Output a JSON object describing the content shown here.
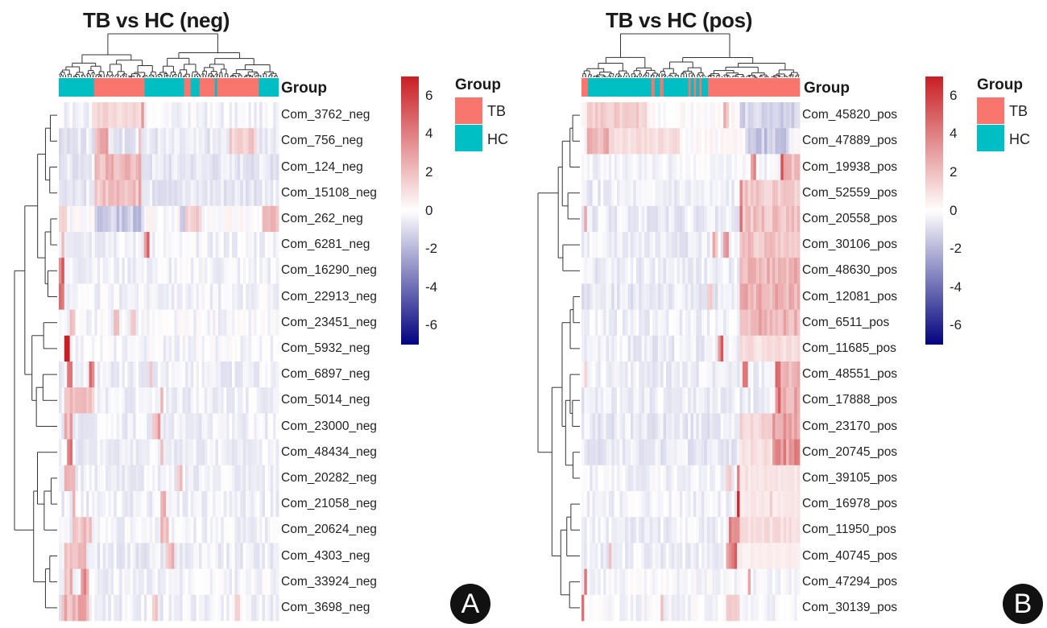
{
  "colors": {
    "TB": "#F8766D",
    "HC": "#00BFC4",
    "high": "#C81F24",
    "mid": "#FFFFFF",
    "low": "#02027F",
    "dendrogram": "#333333"
  },
  "chart_data": [
    {
      "type": "heatmap",
      "title": "TB vs HC (neg)",
      "panel_label": "A",
      "annotation_name": "Group",
      "legend": {
        "title": "Group",
        "entries": [
          {
            "name": "TB",
            "color": "#F8766D"
          },
          {
            "name": "HC",
            "color": "#00BFC4"
          }
        ],
        "placement": "right"
      },
      "colorbar": {
        "range": [
          -7,
          7
        ],
        "ticks": [
          "6",
          "4",
          "2",
          "0",
          "-2",
          "-4",
          "-6"
        ],
        "tick_values": [
          6,
          4,
          2,
          0,
          -2,
          -4,
          -6
        ]
      },
      "n_samples": 80,
      "group_segments": [
        {
          "group": "HC",
          "from": 0.0,
          "to": 0.16
        },
        {
          "group": "TB",
          "from": 0.16,
          "to": 0.39
        },
        {
          "group": "HC",
          "from": 0.39,
          "to": 0.57
        },
        {
          "group": "TB",
          "from": 0.57,
          "to": 0.6
        },
        {
          "group": "HC",
          "from": 0.6,
          "to": 0.64
        },
        {
          "group": "TB",
          "from": 0.64,
          "to": 0.71
        },
        {
          "group": "HC",
          "from": 0.71,
          "to": 0.72
        },
        {
          "group": "TB",
          "from": 0.72,
          "to": 0.91
        },
        {
          "group": "HC",
          "from": 0.91,
          "to": 1.0
        }
      ],
      "rows": [
        "Com_3762_neg",
        "Com_756_neg",
        "Com_124_neg",
        "Com_15108_neg",
        "Com_262_neg",
        "Com_6281_neg",
        "Com_16290_neg",
        "Com_22913_neg",
        "Com_23451_neg",
        "Com_5932_neg",
        "Com_6897_neg",
        "Com_5014_neg",
        "Com_23000_neg",
        "Com_48434_neg",
        "Com_20282_neg",
        "Com_21058_neg",
        "Com_20624_neg",
        "Com_4303_neg",
        "Com_33924_neg",
        "Com_3698_neg"
      ],
      "row_patterns": [
        {
          "base": -0.3,
          "hot": [
            [
              0.15,
              0.38,
              1.5
            ],
            [
              0.37,
              0.39,
              5.5
            ]
          ]
        },
        {
          "base": -0.6,
          "hot": [
            [
              0.16,
              0.22,
              3.0
            ],
            [
              0.36,
              0.38,
              2.5
            ],
            [
              0.78,
              0.9,
              1.8
            ]
          ]
        },
        {
          "base": -0.6,
          "hot": [
            [
              0.16,
              0.38,
              2.5
            ]
          ]
        },
        {
          "base": -0.6,
          "hot": [
            [
              0.16,
              0.38,
              2.2
            ],
            [
              0.36,
              0.37,
              4.5
            ]
          ]
        },
        {
          "base": 0.0,
          "hot": [
            [
              0.0,
              0.04,
              1.5
            ],
            [
              0.55,
              0.65,
              1.8
            ],
            [
              0.92,
              1.0,
              2.2
            ]
          ],
          "cold": [
            [
              0.16,
              0.39,
              -1.8
            ],
            [
              0.55,
              0.57,
              -1.5
            ]
          ]
        },
        {
          "base": -0.3,
          "hot": [
            [
              0.01,
              0.03,
              3.5
            ],
            [
              0.39,
              0.41,
              5.5
            ]
          ]
        },
        {
          "base": -0.3,
          "hot": [
            [
              0.0,
              0.03,
              5.0
            ]
          ]
        },
        {
          "base": -0.3,
          "hot": [
            [
              0.0,
              0.02,
              6.0
            ]
          ]
        },
        {
          "base": -0.2,
          "hot": [
            [
              0.05,
              0.07,
              2.0
            ],
            [
              0.25,
              0.27,
              2.0
            ],
            [
              0.33,
              0.35,
              2.0
            ]
          ]
        },
        {
          "base": -0.2,
          "hot": [
            [
              0.03,
              0.05,
              6.5
            ]
          ]
        },
        {
          "base": -0.4,
          "hot": [
            [
              0.04,
              0.06,
              4.0
            ],
            [
              0.14,
              0.16,
              4.5
            ],
            [
              0.41,
              0.43,
              2.5
            ]
          ]
        },
        {
          "base": -0.4,
          "hot": [
            [
              0.02,
              0.16,
              2.2
            ],
            [
              0.46,
              0.48,
              2.5
            ]
          ]
        },
        {
          "base": -0.4,
          "hot": [
            [
              0.03,
              0.06,
              3.0
            ],
            [
              0.43,
              0.46,
              3.0
            ]
          ]
        },
        {
          "base": -0.4,
          "hot": [
            [
              0.04,
              0.06,
              5.5
            ],
            [
              0.46,
              0.48,
              1.8
            ]
          ]
        },
        {
          "base": -0.4,
          "hot": [
            [
              0.03,
              0.08,
              3.2
            ],
            [
              0.54,
              0.56,
              2.5
            ]
          ]
        },
        {
          "base": -0.4,
          "hot": [
            [
              0.06,
              0.08,
              4.5
            ],
            [
              0.46,
              0.49,
              2.8
            ]
          ]
        },
        {
          "base": -0.3,
          "hot": [
            [
              0.06,
              0.15,
              2.2
            ],
            [
              0.46,
              0.5,
              2.4
            ]
          ]
        },
        {
          "base": -0.5,
          "hot": [
            [
              0.02,
              0.12,
              2.5
            ],
            [
              0.49,
              0.53,
              2.8
            ]
          ]
        },
        {
          "base": -0.3,
          "hot": [
            [
              0.03,
              0.06,
              2.5
            ],
            [
              0.1,
              0.14,
              4.0
            ]
          ]
        },
        {
          "base": -0.4,
          "hot": [
            [
              0.01,
              0.14,
              2.8
            ],
            [
              0.43,
              0.45,
              2.2
            ],
            [
              0.8,
              0.82,
              2.0
            ]
          ]
        }
      ]
    },
    {
      "type": "heatmap",
      "title": "TB vs HC (pos)",
      "panel_label": "B",
      "annotation_name": "Group",
      "legend": {
        "title": "Group",
        "entries": [
          {
            "name": "TB",
            "color": "#F8766D"
          },
          {
            "name": "HC",
            "color": "#00BFC4"
          }
        ],
        "placement": "right"
      },
      "colorbar": {
        "range": [
          -7,
          7
        ],
        "ticks": [
          "6",
          "4",
          "2",
          "0",
          "-2",
          "-4",
          "-6"
        ],
        "tick_values": [
          6,
          4,
          2,
          0,
          -2,
          -4,
          -6
        ]
      },
      "n_samples": 80,
      "group_segments": [
        {
          "group": "TB",
          "from": 0.0,
          "to": 0.03
        },
        {
          "group": "HC",
          "from": 0.03,
          "to": 0.32
        },
        {
          "group": "TB",
          "from": 0.32,
          "to": 0.335
        },
        {
          "group": "HC",
          "from": 0.335,
          "to": 0.36
        },
        {
          "group": "TB",
          "from": 0.36,
          "to": 0.375
        },
        {
          "group": "HC",
          "from": 0.375,
          "to": 0.49
        },
        {
          "group": "TB",
          "from": 0.49,
          "to": 0.5
        },
        {
          "group": "HC",
          "from": 0.5,
          "to": 0.515
        },
        {
          "group": "TB",
          "from": 0.515,
          "to": 0.525
        },
        {
          "group": "HC",
          "from": 0.525,
          "to": 0.54
        },
        {
          "group": "TB",
          "from": 0.54,
          "to": 0.55
        },
        {
          "group": "HC",
          "from": 0.55,
          "to": 0.58
        },
        {
          "group": "TB",
          "from": 0.58,
          "to": 1.0
        }
      ],
      "rows": [
        "Com_45820_pos",
        "Com_47889_pos",
        "Com_19938_pos",
        "Com_52559_pos",
        "Com_20558_pos",
        "Com_30106_pos",
        "Com_48630_pos",
        "Com_12081_pos",
        "Com_6511_pos",
        "Com_11685_pos",
        "Com_48551_pos",
        "Com_17888_pos",
        "Com_23170_pos",
        "Com_20745_pos",
        "Com_39105_pos",
        "Com_16978_pos",
        "Com_11950_pos",
        "Com_40745_pos",
        "Com_47294_pos",
        "Com_30139_pos"
      ],
      "row_patterns": [
        {
          "base": 0.0,
          "hot": [
            [
              0.02,
              0.3,
              1.8
            ],
            [
              0.65,
              0.67,
              2.5
            ]
          ],
          "cold": [
            [
              0.72,
              1.0,
              -1.5
            ]
          ]
        },
        {
          "base": 0.0,
          "hot": [
            [
              0.03,
              0.12,
              2.8
            ],
            [
              0.12,
              0.45,
              1.2
            ]
          ],
          "cold": [
            [
              0.75,
              0.95,
              -1.8
            ]
          ]
        },
        {
          "base": -0.2,
          "hot": [
            [
              0.77,
              0.8,
              3.5
            ],
            [
              0.91,
              0.93,
              5.0
            ],
            [
              0.93,
              1.0,
              2.5
            ]
          ]
        },
        {
          "base": -0.5,
          "hot": [
            [
              0.72,
              0.74,
              5.0
            ],
            [
              0.74,
              1.0,
              2.0
            ]
          ]
        },
        {
          "base": -0.5,
          "hot": [
            [
              0.01,
              0.03,
              2.5
            ],
            [
              0.72,
              0.74,
              4.5
            ],
            [
              0.74,
              1.0,
              2.2
            ]
          ]
        },
        {
          "base": -0.5,
          "hot": [
            [
              0.6,
              0.62,
              2.5
            ],
            [
              0.65,
              0.67,
              3.2
            ],
            [
              0.72,
              1.0,
              2.2
            ]
          ]
        },
        {
          "base": -0.5,
          "hot": [
            [
              0.72,
              1.0,
              2.8
            ]
          ]
        },
        {
          "base": -0.6,
          "hot": [
            [
              0.58,
              0.6,
              1.5
            ],
            [
              0.72,
              1.0,
              2.8
            ]
          ]
        },
        {
          "base": -0.4,
          "hot": [
            [
              0.72,
              1.0,
              2.8
            ]
          ]
        },
        {
          "base": -0.5,
          "hot": [
            [
              0.63,
              0.65,
              5.5
            ],
            [
              0.72,
              1.0,
              1.2
            ]
          ]
        },
        {
          "base": -0.4,
          "hot": [
            [
              0.01,
              0.03,
              2.5
            ],
            [
              0.74,
              0.76,
              4.0
            ],
            [
              0.89,
              0.91,
              5.0
            ],
            [
              0.91,
              1.0,
              2.5
            ]
          ]
        },
        {
          "base": -0.5,
          "hot": [
            [
              0.89,
              0.91,
              5.0
            ],
            [
              0.91,
              1.0,
              3.0
            ]
          ]
        },
        {
          "base": -0.6,
          "hot": [
            [
              0.72,
              0.88,
              1.5
            ],
            [
              0.88,
              1.0,
              3.5
            ]
          ]
        },
        {
          "base": -0.6,
          "hot": [
            [
              0.72,
              0.87,
              1.2
            ],
            [
              0.87,
              1.0,
              3.8
            ]
          ]
        },
        {
          "base": -0.3,
          "hot": [
            [
              0.66,
              0.69,
              2.0
            ],
            [
              0.71,
              0.73,
              6.5
            ],
            [
              0.73,
              1.0,
              1.0
            ]
          ]
        },
        {
          "base": -0.3,
          "hot": [
            [
              0.71,
              0.73,
              6.5
            ],
            [
              0.73,
              1.0,
              0.8
            ],
            [
              0.86,
              0.88,
              2.0
            ]
          ]
        },
        {
          "base": -0.4,
          "hot": [
            [
              0.68,
              0.72,
              4.5
            ],
            [
              0.72,
              1.0,
              1.2
            ]
          ]
        },
        {
          "base": -0.4,
          "hot": [
            [
              0.12,
              0.14,
              2.0
            ],
            [
              0.66,
              0.71,
              4.5
            ],
            [
              0.71,
              1.0,
              0.6
            ]
          ]
        },
        {
          "base": -0.2,
          "hot": [
            [
              0.01,
              0.03,
              6.5
            ],
            [
              0.76,
              0.78,
              3.5
            ]
          ]
        },
        {
          "base": -0.2,
          "hot": [
            [
              0.0,
              0.015,
              7.0
            ],
            [
              0.36,
              0.38,
              1.8
            ],
            [
              0.66,
              0.72,
              1.5
            ]
          ]
        }
      ]
    }
  ]
}
